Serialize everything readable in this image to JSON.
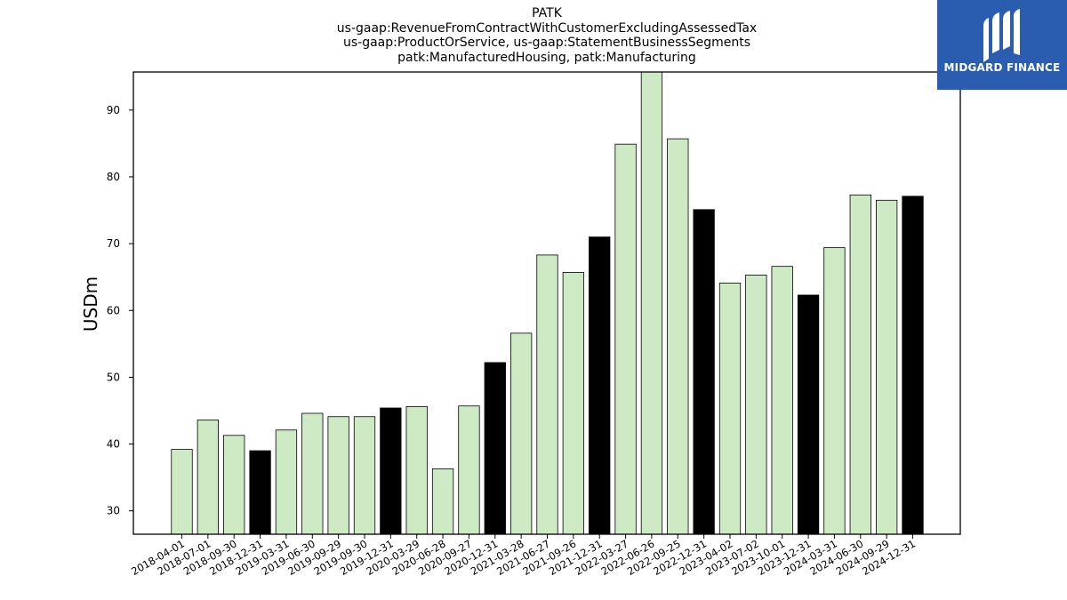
{
  "title_lines": [
    "PATK",
    "us-gaap:RevenueFromContractWithCustomerExcludingAssessedTax",
    "us-gaap:ProductOrService, us-gaap:StatementBusinessSegments",
    "patk:ManufacturedHousing, patk:Manufacturing"
  ],
  "logo": {
    "text": "MIDGARD FINANCE",
    "bg_color": "#2a5db0"
  },
  "chart_data": {
    "type": "bar",
    "ylabel": "USDm",
    "xlabel": "",
    "ylim": [
      26.5,
      95.7
    ],
    "yticks": [
      30,
      40,
      50,
      60,
      70,
      80,
      90
    ],
    "grid": false,
    "colors": {
      "quarter": "#cdeac5",
      "year_end": "#000000",
      "edge": "#000000"
    },
    "categories": [
      "2018-04-01",
      "2018-07-01",
      "2018-09-30",
      "2018-12-31",
      "2019-03-31",
      "2019-06-30",
      "2019-09-29",
      "2019-09-30",
      "2019-12-31",
      "2020-03-29",
      "2020-06-28",
      "2020-09-27",
      "2020-12-31",
      "2021-03-28",
      "2021-06-27",
      "2021-09-26",
      "2021-12-31",
      "2022-03-27",
      "2022-06-26",
      "2022-09-25",
      "2022-12-31",
      "2023-04-02",
      "2023-07-02",
      "2023-10-01",
      "2023-12-31",
      "2024-03-31",
      "2024-06-30",
      "2024-09-29",
      "2024-12-31"
    ],
    "values": [
      39.2,
      43.6,
      41.3,
      39.0,
      42.1,
      44.6,
      44.1,
      44.1,
      45.4,
      45.6,
      36.3,
      45.7,
      52.2,
      56.6,
      68.3,
      65.7,
      71.0,
      84.9,
      96.0,
      85.7,
      75.1,
      64.1,
      65.3,
      66.6,
      62.3,
      69.4,
      77.3,
      76.5,
      77.1
    ],
    "year_end": [
      false,
      false,
      false,
      true,
      false,
      false,
      false,
      false,
      true,
      false,
      false,
      false,
      true,
      false,
      false,
      false,
      true,
      false,
      false,
      false,
      true,
      false,
      false,
      false,
      true,
      false,
      false,
      false,
      true
    ]
  }
}
